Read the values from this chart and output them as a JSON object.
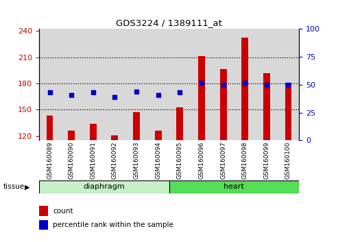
{
  "title": "GDS3224 / 1389111_at",
  "samples": [
    "GSM160089",
    "GSM160090",
    "GSM160091",
    "GSM160092",
    "GSM160093",
    "GSM160094",
    "GSM160095",
    "GSM160096",
    "GSM160097",
    "GSM160098",
    "GSM160099",
    "GSM160100"
  ],
  "counts": [
    143,
    126,
    134,
    121,
    147,
    126,
    153,
    211,
    196,
    232,
    192,
    181
  ],
  "percentiles": [
    43,
    41,
    43,
    39,
    44,
    41,
    43,
    52,
    50,
    52,
    50,
    50
  ],
  "groups": [
    "diaphragm",
    "diaphragm",
    "diaphragm",
    "diaphragm",
    "diaphragm",
    "diaphragm",
    "heart",
    "heart",
    "heart",
    "heart",
    "heart",
    "heart"
  ],
  "bar_color": "#CC0000",
  "dot_color": "#0000CC",
  "ylim_left": [
    115,
    242
  ],
  "ylim_right": [
    0,
    100
  ],
  "yticks_left": [
    120,
    150,
    180,
    210,
    240
  ],
  "yticks_right": [
    0,
    25,
    50,
    75,
    100
  ],
  "diaphragm_color_light": "#d4f5d4",
  "diaphragm_color_dark": "#90ee90",
  "heart_color": "#66dd55",
  "tissue_label": "tissue",
  "group_label_diaphragm": "diaphragm",
  "group_label_heart": "heart",
  "legend_count": "count",
  "legend_percentile": "percentile rank within the sample",
  "col_bg": "#d8d8d8",
  "plot_bg": "#ffffff"
}
